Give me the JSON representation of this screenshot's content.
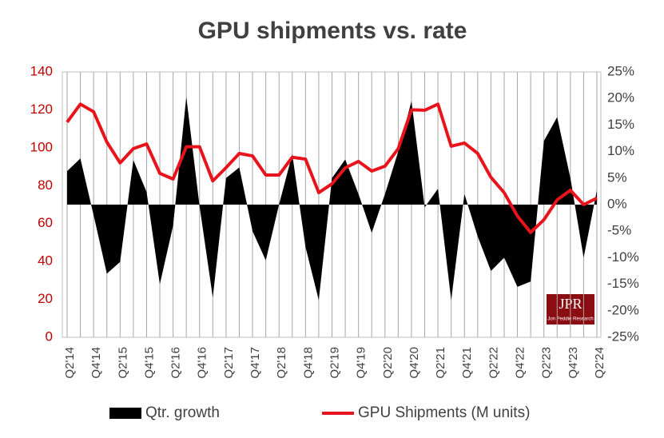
{
  "chart_data": {
    "type": "area-line",
    "title": "GPU shipments vs. rate",
    "categories": [
      "Q2'14",
      null,
      "Q4'14",
      null,
      "Q2'15",
      null,
      "Q4'15",
      null,
      "Q2'16",
      null,
      "Q4'16",
      null,
      "Q2'17",
      null,
      "Q4'17",
      null,
      "Q2'18",
      null,
      "Q4'18",
      null,
      "Q2'19",
      null,
      "Q4'19",
      null,
      "Q2'20",
      null,
      "Q4'20",
      null,
      "Q2'21",
      null,
      "Q4'21",
      null,
      "Q2'22",
      null,
      "Q4'22",
      null,
      "Q2'23",
      null,
      "Q4'23",
      null,
      "Q2'24"
    ],
    "series": [
      {
        "name": "Qtr. growth",
        "color": "#000000",
        "axis": "y2",
        "values": [
          6.3,
          8.7,
          -2,
          -13,
          -10.8,
          8.4,
          2.4,
          -15,
          -4,
          20.3,
          -0.3,
          -17.5,
          5,
          7,
          -5,
          -10.5,
          0,
          9.5,
          -8,
          -18,
          5,
          8.5,
          2,
          -5.3,
          2,
          10,
          19.5,
          -0.5,
          3,
          -18,
          2,
          -6,
          -12.5,
          -10,
          -15.5,
          -14.5,
          12,
          16.5,
          5,
          -10,
          2.7
        ]
      },
      {
        "name": "GPU Shipments (M units)",
        "color": "#e8141b",
        "values": [
          113.5,
          123,
          119,
          103,
          92,
          99.5,
          102,
          86.5,
          83.5,
          100.5,
          100.5,
          82.5,
          89.5,
          97,
          95.7,
          85.6,
          85.6,
          95,
          94,
          76.3,
          81,
          89.4,
          92.8,
          87.7,
          90.3,
          99.5,
          120,
          119.8,
          123,
          100.8,
          102.5,
          97,
          84.4,
          76.3,
          64,
          55.3,
          62,
          72.5,
          77.6,
          70,
          73.4
        ]
      }
    ],
    "ylim": [
      0,
      140
    ],
    "yticks": [
      0,
      20,
      40,
      60,
      80,
      100,
      120,
      140
    ],
    "y2lim": [
      -25,
      25
    ],
    "y2ticks": [
      {
        "value": -25,
        "label": "-25%"
      },
      {
        "value": -20,
        "label": "-20%"
      },
      {
        "value": -15,
        "label": "-15%"
      },
      {
        "value": -10,
        "label": "-10%"
      },
      {
        "value": -5,
        "label": "-5%"
      },
      {
        "value": 0,
        "label": "0%"
      },
      {
        "value": 5,
        "label": "5%"
      },
      {
        "value": 10,
        "label": "10%"
      },
      {
        "value": 15,
        "label": "15%"
      },
      {
        "value": 20,
        "label": "20%"
      },
      {
        "value": 25,
        "label": "25%"
      }
    ],
    "ytick_color": "#c00000",
    "grid": "vertical",
    "legend": "bottom",
    "logo": {
      "title": "JPR",
      "subtitle": "Jon Peddie Research"
    }
  }
}
